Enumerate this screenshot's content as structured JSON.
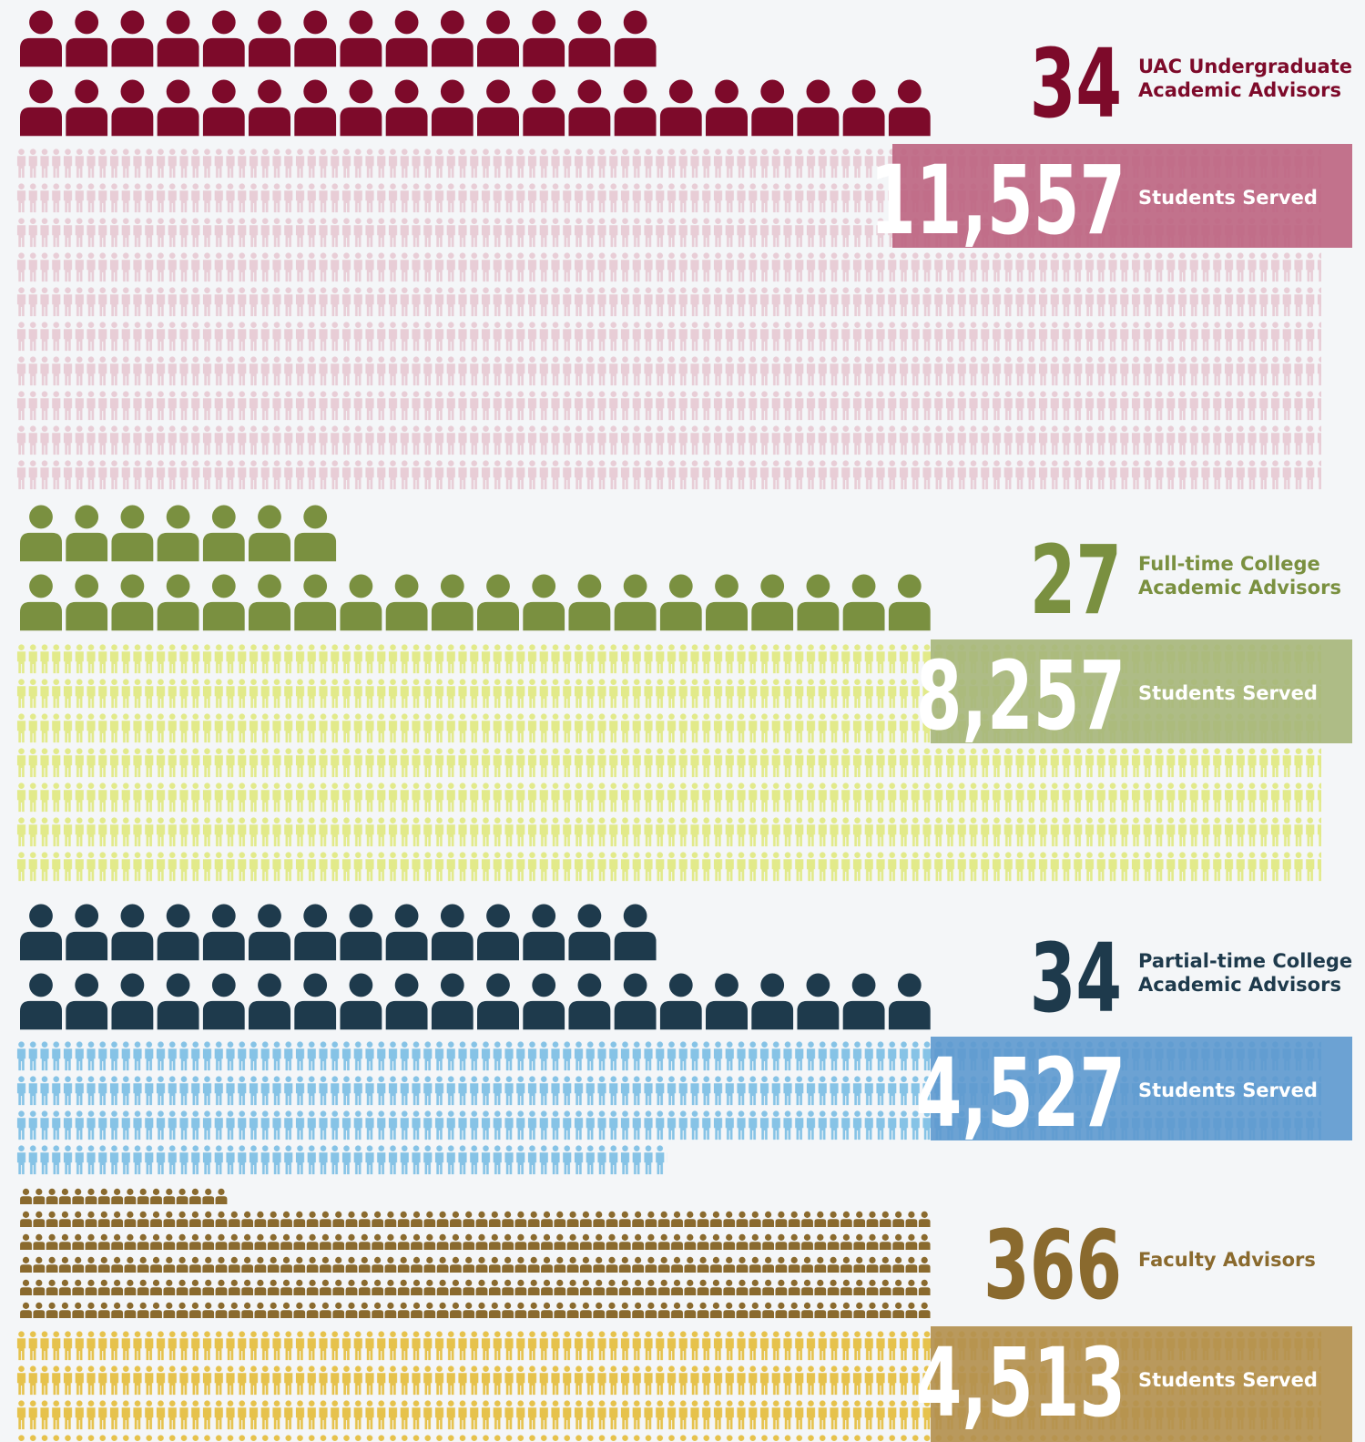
{
  "sections": [
    {
      "advisors": 34,
      "advisors_label": [
        "UAC Undergraduate",
        "Academic Advisors"
      ],
      "students": "11,557",
      "students_label": "Students Served",
      "advisor_color": "#7d0a2a",
      "student_color": "#e8cdd6",
      "box_color": "#bd6682"
    },
    {
      "advisors": 27,
      "advisors_label": [
        "Full-time College",
        "Academic Advisors"
      ],
      "students": "8,257",
      "students_label": "Students Served",
      "advisor_color": "#7a9040",
      "student_color": "#e2ea8a",
      "box_color": "#a7b67c"
    },
    {
      "advisors": 34,
      "advisors_label": [
        "Partial-time College",
        "Academic Advisors"
      ],
      "students": "4,527",
      "students_label": "Students Served",
      "advisor_color": "#1e3a4c",
      "student_color": "#86c3e6",
      "box_color": "#5f9acf"
    },
    {
      "advisors": 366,
      "advisors_label": [
        "Faculty Advisors"
      ],
      "students": "4,513",
      "students_label": "Students Served",
      "advisor_color": "#8a6a2e",
      "student_color": "#e6c24c",
      "box_color": "#b3904f"
    }
  ]
}
